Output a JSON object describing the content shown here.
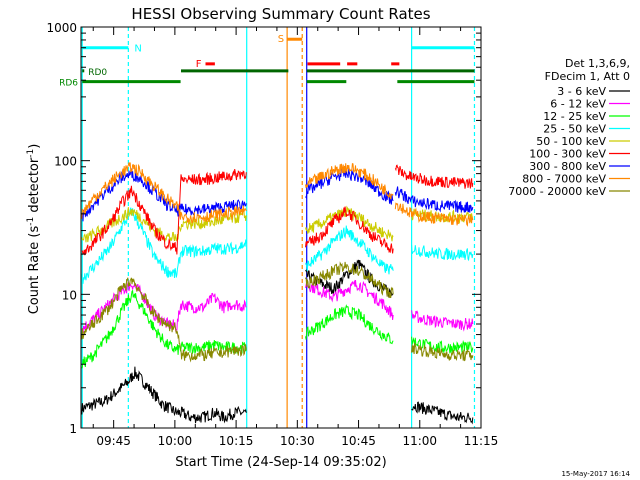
{
  "chart_data": {
    "type": "line",
    "title": "HESSI Observing Summary Count Rates",
    "xlabel": "Start Time (24-Sep-14 09:35:02)",
    "ylabel_main": "Count Rate (s",
    "ylabel_sup1": "-1",
    "ylabel_mid": " detector",
    "ylabel_sup2": "-1",
    "ylabel_end": ")",
    "yscale": "log",
    "ylim": [
      1,
      1000
    ],
    "xlim_min": [
      577,
      675
    ],
    "x_unit": "minutes after midnight",
    "x_ticks": [
      {
        "value": 585,
        "label": "09:45"
      },
      {
        "value": 600,
        "label": "10:00"
      },
      {
        "value": 615,
        "label": "10:15"
      },
      {
        "value": 630,
        "label": "10:30"
      },
      {
        "value": 645,
        "label": "10:45"
      },
      {
        "value": 660,
        "label": "11:00"
      },
      {
        "value": 675,
        "label": "11:15"
      }
    ],
    "y_ticks": [
      {
        "value": 1,
        "label": "1"
      },
      {
        "value": 10,
        "label": "10"
      },
      {
        "value": 100,
        "label": "100"
      },
      {
        "value": 1000,
        "label": "1000"
      }
    ],
    "legend_title_1": "Det 1,3,6,9,",
    "legend_title_2": "FDecim 1, Att 0",
    "legend_placement": "right",
    "series": [
      {
        "name": "3 - 6 keV",
        "color": "#000000",
        "segments": [
          {
            "x": [
              577.2,
              583,
              588.5,
              590.2,
              593,
              597,
              600.5,
              601.5,
              604,
              607,
              609.5,
              612,
              614.5,
              617.5
            ],
            "y": [
              1.4,
              1.6,
              2.2,
              2.6,
              2.1,
              1.5,
              1.3,
              1.3,
              1.2,
              1.2,
              1.3,
              1.2,
              1.3,
              1.3
            ]
          },
          {
            "x": [
              632,
              636,
              639,
              642,
              645,
              648,
              651,
              653.5
            ],
            "y": [
              14,
              12,
              11,
              14,
              17,
              13,
              11,
              10
            ]
          },
          {
            "x": [
              658,
              661,
              665,
              669,
              673
            ],
            "y": [
              1.5,
              1.4,
              1.3,
              1.2,
              1.2
            ]
          }
        ]
      },
      {
        "name": "6 - 12 keV",
        "color": "#ff00ff",
        "segments": [
          {
            "x": [
              577.2,
              580,
              584,
              587,
              589.5,
              592,
              595,
              598,
              600.5,
              601.5,
              604,
              607,
              609.5,
              612,
              614.5,
              617.5
            ],
            "y": [
              5.5,
              6.5,
              8.5,
              10.5,
              12,
              10,
              7,
              6,
              5.8,
              8.5,
              8,
              8,
              9.5,
              8,
              8.5,
              8
            ]
          },
          {
            "x": [
              632,
              636,
              639,
              642,
              645,
              648,
              651,
              653.5
            ],
            "y": [
              12,
              10.5,
              9.5,
              11,
              12,
              10,
              8.5,
              7
            ]
          },
          {
            "x": [
              658,
              661,
              665,
              669,
              673
            ],
            "y": [
              7,
              6.5,
              6.2,
              6,
              6
            ]
          }
        ]
      },
      {
        "name": "12 - 25 keV",
        "color": "#00ff00",
        "segments": [
          {
            "x": [
              577.2,
              580,
              584,
              587,
              589.5,
              592,
              595,
              598,
              600.5,
              601.5,
              604,
              607,
              609.5,
              612,
              614.5,
              617.5
            ],
            "y": [
              3,
              3.5,
              5,
              7.5,
              10,
              8,
              5.5,
              4.2,
              3.8,
              4,
              4,
              4,
              4.2,
              4,
              4,
              4
            ]
          },
          {
            "x": [
              632,
              636,
              639,
              642,
              645,
              648,
              651,
              653.5
            ],
            "y": [
              5,
              6,
              7,
              7.5,
              7,
              5.8,
              5,
              4.5
            ]
          },
          {
            "x": [
              658,
              661,
              665,
              669,
              673
            ],
            "y": [
              4.5,
              4.2,
              4,
              4,
              4
            ]
          }
        ]
      },
      {
        "name": "25 - 50 keV",
        "color": "#00ffff",
        "segments": [
          {
            "x": [
              577.2,
              580,
              584,
              587,
              589.5,
              592,
              595,
              598,
              600.5,
              601.5,
              604,
              607,
              609.5,
              612,
              614.5,
              617.5
            ],
            "y": [
              13,
              16,
              22,
              32,
              42,
              30,
              19,
              15,
              14,
              21,
              21,
              21,
              22,
              22,
              22,
              24
            ]
          },
          {
            "x": [
              632,
              636,
              639,
              642,
              645,
              648,
              651,
              653.5
            ],
            "y": [
              16,
              20,
              25,
              30,
              25,
              20,
              16,
              15
            ]
          },
          {
            "x": [
              658,
              661,
              665,
              669,
              673
            ],
            "y": [
              22,
              21,
              20,
              20,
              20
            ]
          }
        ]
      },
      {
        "name": "50 - 100 keV",
        "color": "#cccc00",
        "segments": [
          {
            "x": [
              577.2,
              580,
              584,
              587,
              589.5,
              592,
              595,
              598,
              600.5,
              601.5,
              604,
              607,
              609.5,
              612,
              614.5,
              617.5
            ],
            "y": [
              25,
              28,
              33,
              38,
              42,
              37,
              30,
              27,
              26,
              34,
              34,
              34,
              35,
              36,
              37,
              39
            ]
          },
          {
            "x": [
              632,
              636,
              639,
              642,
              645,
              648,
              651,
              653.5
            ],
            "y": [
              30,
              34,
              38,
              41,
              38,
              33,
              29,
              27
            ]
          },
          {
            "x": [
              658,
              661,
              665,
              669,
              673
            ],
            "y": [
              40,
              39,
              38,
              38,
              38
            ]
          }
        ]
      },
      {
        "name": "100 - 300 keV",
        "color": "#ff0000",
        "segments": [
          {
            "x": [
              577.2,
              580,
              584,
              587,
              589.5,
              592,
              595,
              598,
              600.5,
              601.5,
              604,
              607,
              609.5,
              612,
              614.5,
              617.5
            ],
            "y": [
              20,
              24,
              33,
              48,
              60,
              44,
              30,
              24,
              22,
              72,
              72,
              72,
              74,
              76,
              78,
              82
            ]
          },
          {
            "x": [
              632,
              636,
              639,
              642,
              645,
              648,
              651,
              653.5
            ],
            "y": [
              23,
              28,
              35,
              42,
              35,
              28,
              24,
              22
            ]
          },
          {
            "x": [
              654,
              656,
              658,
              661,
              665,
              669,
              673
            ],
            "y": [
              88,
              80,
              75,
              72,
              70,
              68,
              68
            ]
          }
        ]
      },
      {
        "name": "300 - 800 keV",
        "color": "#0000ff",
        "segments": [
          {
            "x": [
              577.2,
              580,
              584,
              587,
              589.5,
              592,
              595,
              598,
              600.5,
              601.5,
              604,
              607,
              609.5,
              612,
              614.5,
              617.5
            ],
            "y": [
              38,
              47,
              62,
              75,
              80,
              72,
              58,
              47,
              42,
              43,
              43,
              43,
              44,
              45,
              46,
              48
            ]
          },
          {
            "x": [
              632,
              636,
              639,
              642,
              645,
              648,
              651,
              653.5
            ],
            "y": [
              58,
              68,
              76,
              80,
              76,
              66,
              56,
              50
            ]
          },
          {
            "x": [
              654,
              656,
              658,
              661,
              665,
              669,
              673
            ],
            "y": [
              60,
              55,
              50,
              48,
              46,
              45,
              45
            ]
          }
        ]
      },
      {
        "name": "800 - 7000 keV",
        "color": "#ff8800",
        "segments": [
          {
            "x": [
              577.2,
              580,
              584,
              587,
              589.5,
              592,
              595,
              598,
              600.5,
              601.5,
              604,
              607,
              609.5,
              612,
              614.5,
              617.5
            ],
            "y": [
              40,
              52,
              68,
              82,
              90,
              80,
              64,
              52,
              45,
              38,
              38,
              38,
              39,
              40,
              41,
              42
            ]
          },
          {
            "x": [
              632,
              636,
              639,
              642,
              645,
              648,
              651,
              653.5
            ],
            "y": [
              65,
              76,
              84,
              90,
              84,
              74,
              62,
              55
            ]
          },
          {
            "x": [
              654,
              656,
              658,
              661,
              665,
              669,
              673
            ],
            "y": [
              48,
              44,
              40,
              38,
              37,
              36,
              36
            ]
          }
        ]
      },
      {
        "name": "7000 - 20000 keV",
        "color": "#888800",
        "segments": [
          {
            "x": [
              577.2,
              580,
              584,
              587,
              589.5,
              592,
              595,
              598,
              600.5,
              601.5,
              604,
              607,
              609.5,
              612,
              614.5,
              617.5
            ],
            "y": [
              5,
              6,
              8,
              11,
              13,
              10,
              7,
              6,
              5.5,
              3.5,
              3.5,
              3.5,
              3.6,
              3.7,
              3.8,
              3.8
            ]
          },
          {
            "x": [
              632,
              636,
              639,
              642,
              645,
              648,
              651,
              653.5
            ],
            "y": [
              12,
              13.5,
              15,
              16,
              15,
              13,
              11,
              10
            ]
          },
          {
            "x": [
              658,
              661,
              665,
              669,
              673
            ],
            "y": [
              4,
              3.8,
              3.6,
              3.5,
              3.5
            ]
          }
        ]
      }
    ],
    "vertical_lines": [
      {
        "x": 577.3,
        "color": "#00ffff",
        "style": "solid"
      },
      {
        "x": 588.6,
        "color": "#00ffff",
        "style": "dashed"
      },
      {
        "x": 617.6,
        "color": "#00ffff",
        "style": "solid"
      },
      {
        "x": 627.5,
        "color": "#ff8800",
        "style": "solid"
      },
      {
        "x": 631.2,
        "color": "#ff8800",
        "style": "dashed"
      },
      {
        "x": 632.3,
        "color": "#0000ff",
        "style": "solid"
      },
      {
        "x": 658.0,
        "color": "#00ffff",
        "style": "solid"
      },
      {
        "x": 673.4,
        "color": "#00ffff",
        "style": "dashed"
      }
    ],
    "flag_bars": [
      {
        "label": "N",
        "color": "#00ffff",
        "level": 700,
        "ranges": [
          [
            577.3,
            588.6
          ],
          [
            658,
            673.4
          ]
        ]
      },
      {
        "label": "S",
        "color": "#ff8800",
        "level": 810,
        "ranges": [
          [
            627.5,
            631.2
          ]
        ]
      },
      {
        "label": "F",
        "color": "#ff0000",
        "level": 530,
        "ranges": [
          [
            607.5,
            609.8
          ],
          [
            632.5,
            640.5
          ],
          [
            642.2,
            644.7
          ],
          [
            653,
            655
          ]
        ]
      },
      {
        "label": "RD0",
        "color": "#006600",
        "level": 470,
        "ranges": [
          [
            577.3,
            577.8
          ],
          [
            601.5,
            627.8
          ],
          [
            632.3,
            673.4
          ]
        ]
      },
      {
        "label": "RD6",
        "color": "#008800",
        "level": 390,
        "ranges": [
          [
            577.3,
            601.4
          ],
          [
            632.3,
            642
          ],
          [
            654.5,
            673.4
          ]
        ]
      }
    ]
  },
  "footer": {
    "date_stamp": "15-May-2017 16:14"
  }
}
